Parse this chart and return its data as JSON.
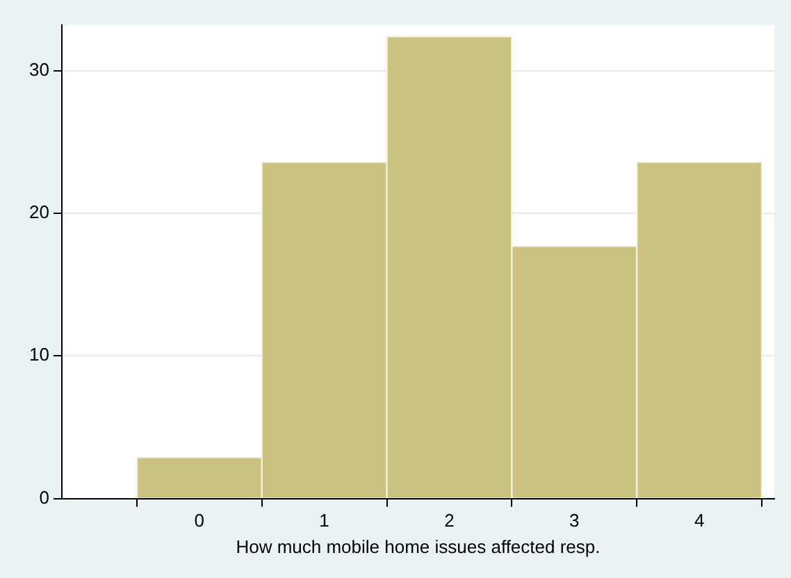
{
  "chart_data": {
    "type": "histogram",
    "xlabel": "How much mobile home issues affected resp.",
    "bins": [
      -0.5,
      0.5,
      1.5,
      2.5,
      3.5,
      4.5
    ],
    "values": [
      2.9,
      23.6,
      32.4,
      17.7,
      23.6
    ],
    "color": "#cbc282",
    "xlim": [
      -1.1,
      4.6
    ],
    "xticks": [
      0,
      1,
      2,
      3,
      4
    ],
    "ylim": [
      0,
      33.2
    ],
    "yticks": [
      0,
      10,
      20,
      30
    ],
    "grid": "y",
    "legend": false
  }
}
